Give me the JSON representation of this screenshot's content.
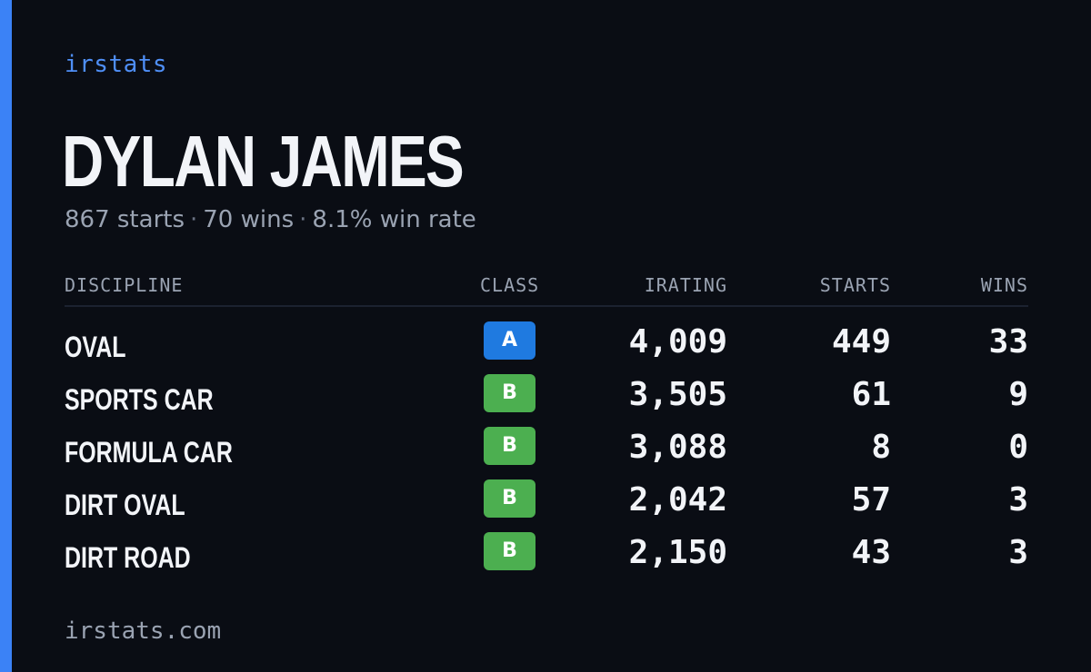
{
  "brand": "irstats",
  "driver": {
    "name": "DYLAN JAMES",
    "starts_text": "867 starts",
    "wins_text": "70 wins",
    "win_rate_text": "8.1% win rate",
    "separator": "·"
  },
  "table": {
    "headers": {
      "discipline": "DISCIPLINE",
      "class": "CLASS",
      "irating": "IRATING",
      "starts": "STARTS",
      "wins": "WINS"
    },
    "rows": [
      {
        "discipline": "OVAL",
        "class": "A",
        "class_color": "#1f7ae0",
        "irating": "4,009",
        "starts": "449",
        "wins": "33"
      },
      {
        "discipline": "SPORTS CAR",
        "class": "B",
        "class_color": "#4caf50",
        "irating": "3,505",
        "starts": "61",
        "wins": "9"
      },
      {
        "discipline": "FORMULA CAR",
        "class": "B",
        "class_color": "#4caf50",
        "irating": "3,088",
        "starts": "8",
        "wins": "0"
      },
      {
        "discipline": "DIRT OVAL",
        "class": "B",
        "class_color": "#4caf50",
        "irating": "2,042",
        "starts": "57",
        "wins": "3"
      },
      {
        "discipline": "DIRT ROAD",
        "class": "B",
        "class_color": "#4caf50",
        "irating": "2,150",
        "starts": "43",
        "wins": "3"
      }
    ]
  },
  "footer": "irstats.com",
  "colors": {
    "background": "#0a0d14",
    "accent": "#3b82f6",
    "class_a": "#1f7ae0",
    "class_b": "#4caf50"
  }
}
